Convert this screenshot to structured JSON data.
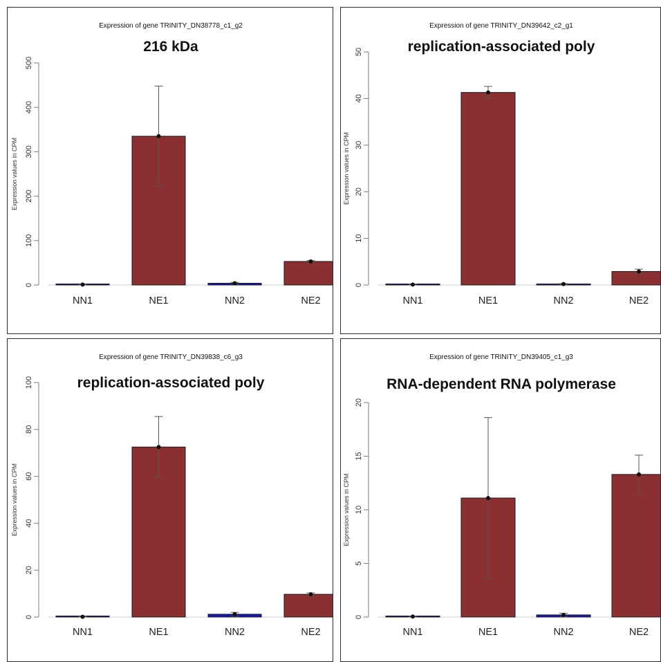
{
  "colors": {
    "NN": "#1616b5",
    "NE": "#8b2f31",
    "bar_edge": "#1a1a1a",
    "axis": "#7a7a7a",
    "err": "#555555"
  },
  "chart_data": [
    {
      "type": "bar",
      "subtitle": "Expression of gene TRINITY_DN38778_c1_g2",
      "title": "216 kDa",
      "ylabel": "Expression values in CPM",
      "categories": [
        "NN1",
        "NE1",
        "NN2",
        "NE2"
      ],
      "values": [
        1,
        335,
        4,
        53
      ],
      "error_low": [
        0.5,
        222,
        2,
        51
      ],
      "error_high": [
        1.5,
        448,
        6,
        55
      ],
      "ylim": [
        0,
        500
      ],
      "yticks": [
        0,
        100,
        200,
        300,
        400,
        500
      ],
      "bar_colors": [
        "NN",
        "NE",
        "NN",
        "NE"
      ],
      "grid": false
    },
    {
      "type": "bar",
      "subtitle": "Expression of gene TRINITY_DN39642_c2_g1",
      "title": "replication-associated poly",
      "ylabel": "Expression values in CPM",
      "categories": [
        "NN1",
        "NE1",
        "NN2",
        "NE2"
      ],
      "values": [
        0.1,
        41.3,
        0.2,
        2.9
      ],
      "error_low": [
        0.0,
        40.1,
        0.1,
        2.5
      ],
      "error_high": [
        0.2,
        42.6,
        0.3,
        3.4
      ],
      "ylim": [
        0,
        50
      ],
      "yticks": [
        0,
        10,
        20,
        30,
        40,
        50
      ],
      "bar_colors": [
        "NN",
        "NE",
        "NN",
        "NE"
      ],
      "grid": false
    },
    {
      "type": "bar",
      "subtitle": "Expression of gene TRINITY_DN39838_c6_g3",
      "title": "replication-associated poly",
      "ylabel": "Expression values in CPM",
      "categories": [
        "NN1",
        "NE1",
        "NN2",
        "NE2"
      ],
      "values": [
        0.1,
        72.5,
        1.2,
        9.7
      ],
      "error_low": [
        0.0,
        59.5,
        0.3,
        9.1
      ],
      "error_high": [
        0.3,
        85.5,
        2.0,
        10.3
      ],
      "ylim": [
        0,
        100
      ],
      "yticks": [
        0,
        20,
        40,
        60,
        80,
        100
      ],
      "bar_colors": [
        "NN",
        "NE",
        "NN",
        "NE"
      ],
      "grid": false
    },
    {
      "type": "bar",
      "subtitle": "Expression of gene TRINITY_DN39405_c1_g3",
      "title": "RNA-dependent RNA polymerase",
      "ylabel": "Expression values in CPM",
      "categories": [
        "NN1",
        "NE1",
        "NN2",
        "NE2"
      ],
      "values": [
        0.05,
        11.1,
        0.2,
        13.3
      ],
      "error_low": [
        0.0,
        3.6,
        0.05,
        11.5
      ],
      "error_high": [
        0.1,
        18.6,
        0.35,
        15.1
      ],
      "ylim": [
        0,
        20
      ],
      "yticks": [
        0,
        5,
        10,
        15,
        20
      ],
      "bar_colors": [
        "NN",
        "NE",
        "NN",
        "NE"
      ],
      "grid": false
    }
  ]
}
